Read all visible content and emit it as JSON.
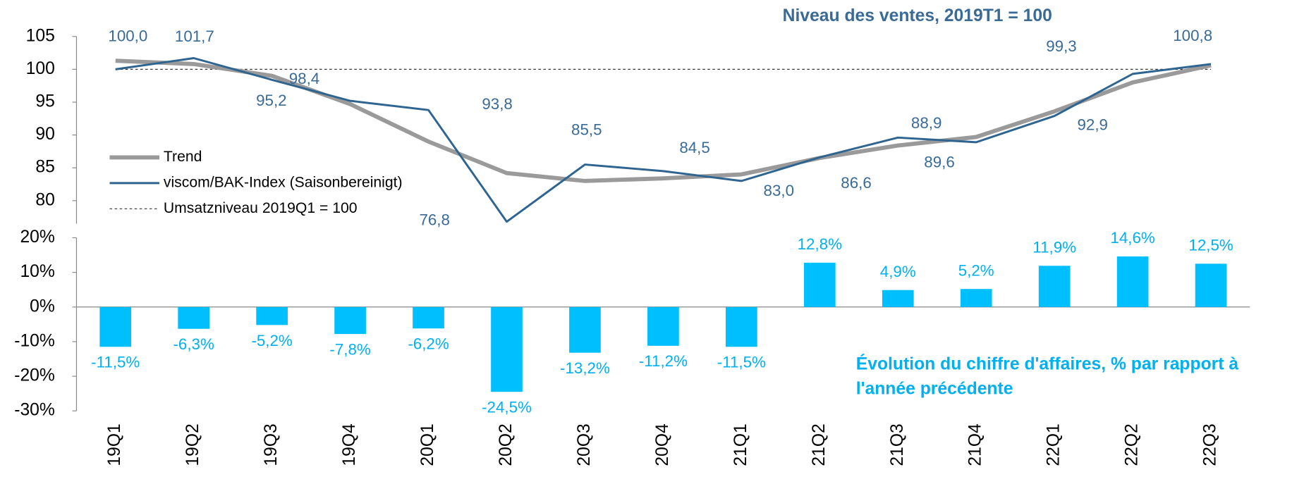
{
  "chart_data": [
    {
      "type": "line",
      "title": "Niveau des ventes, 2019T1 = 100",
      "ylim": [
        76.5,
        105
      ],
      "yticks": [
        80,
        85,
        90,
        95,
        100,
        105
      ],
      "reference_line": {
        "name": "Umsatzniveau 2019Q1 = 100",
        "value": 100
      },
      "legend": "left",
      "series": [
        {
          "name": "Trend",
          "color": "#9a9a9a",
          "values": [
            101.3,
            100.8,
            99.0,
            94.7,
            89.0,
            84.2,
            83.0,
            83.4,
            84.0,
            86.5,
            88.4,
            89.7,
            93.6,
            98.0,
            100.6
          ]
        },
        {
          "name": "viscom/BAK-Index (Saisonbereinigt)",
          "color": "#2e6490",
          "values": [
            100.0,
            101.7,
            98.4,
            95.2,
            93.8,
            76.8,
            85.5,
            84.5,
            83.0,
            86.6,
            89.6,
            88.9,
            92.9,
            99.3,
            100.8
          ],
          "value_labels": [
            "100,0",
            "101,7",
            "98,4",
            "95,2",
            "93,8",
            "76,8",
            "85,5",
            "84,5",
            "83,0",
            "86,6",
            "89,6",
            "88,9",
            "92,9",
            "99,3",
            "100,8"
          ]
        }
      ]
    },
    {
      "type": "bar",
      "title": "Évolution du chiffre d'affaires, % par rapport à l'année précédente",
      "categories": [
        "19Q1",
        "19Q2",
        "19Q3",
        "19Q4",
        "20Q1",
        "20Q2",
        "20Q3",
        "20Q4",
        "21Q1",
        "21Q2",
        "21Q3",
        "21Q4",
        "22Q1",
        "22Q2",
        "22Q3"
      ],
      "values": [
        -11.5,
        -6.3,
        -5.2,
        -7.8,
        -6.2,
        -24.5,
        -13.2,
        -11.2,
        -11.5,
        12.8,
        4.9,
        5.2,
        11.9,
        14.6,
        12.5
      ],
      "value_labels": [
        "-11,5%",
        "-6,3%",
        "-5,2%",
        "-7,8%",
        "-6,2%",
        "-24,5%",
        "-13,2%",
        "-11,2%",
        "-11,5%",
        "12,8%",
        "4,9%",
        "5,2%",
        "11,9%",
        "14,6%",
        "12,5%"
      ],
      "color": "#00bfff",
      "ylim": [
        -30,
        20
      ],
      "yticks": [
        {
          "value": -30,
          "label": "-30%"
        },
        {
          "value": -20,
          "label": "-20%"
        },
        {
          "value": -10,
          "label": "-10%"
        },
        {
          "value": 0,
          "label": "0%"
        },
        {
          "value": 10,
          "label": "10%"
        },
        {
          "value": 20,
          "label": "20%"
        }
      ]
    }
  ]
}
